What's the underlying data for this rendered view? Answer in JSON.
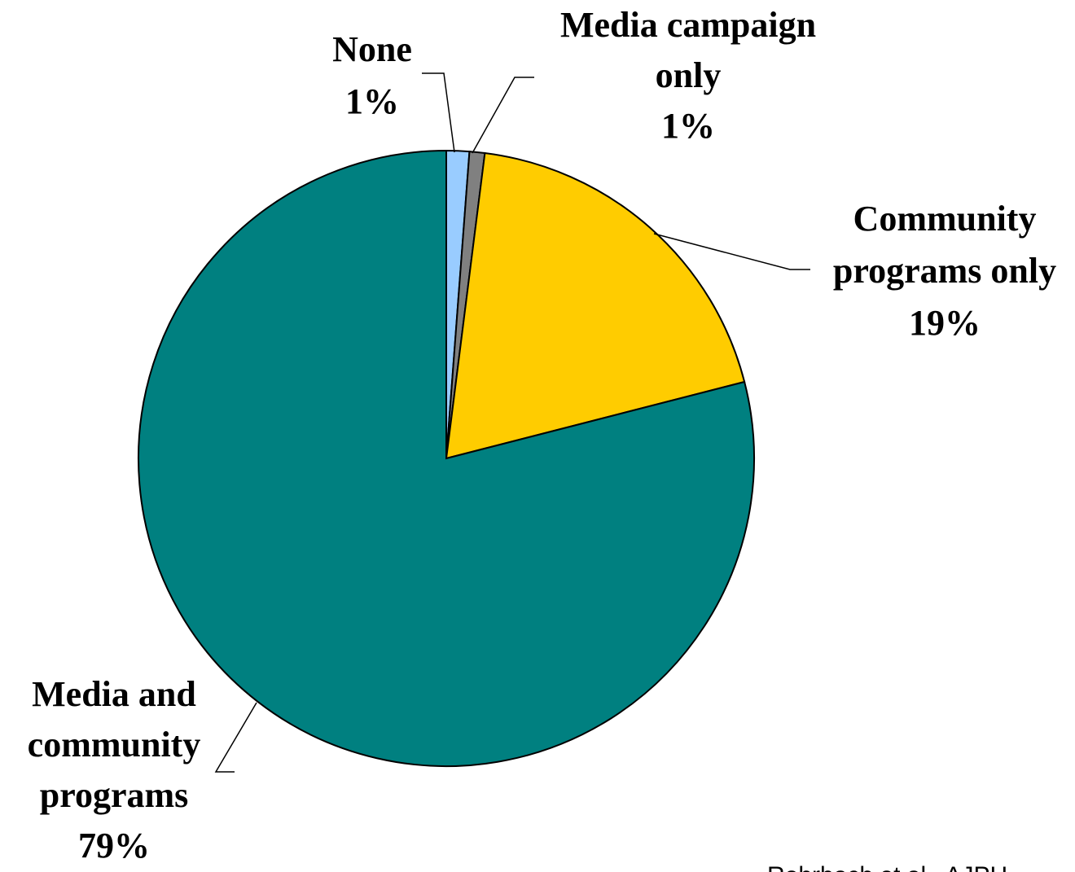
{
  "chart_data": {
    "type": "pie",
    "slices": [
      {
        "name": "None",
        "value": 1.2,
        "label_lines": [
          "None"
        ],
        "percent_label": "1%",
        "color": "#99CCFF"
      },
      {
        "name": "Media campaign only",
        "value": 0.8,
        "label_lines": [
          "Media campaign",
          "only"
        ],
        "percent_label": "1%",
        "color": "#808080"
      },
      {
        "name": "Community programs only",
        "value": 19,
        "label_lines": [
          "Community",
          "programs only"
        ],
        "percent_label": "19%",
        "color": "#FFCC00"
      },
      {
        "name": "Media and community programs",
        "value": 79,
        "label_lines": [
          "Media and",
          "community",
          "programs"
        ],
        "percent_label": "79%",
        "color": "#008080"
      }
    ],
    "start_angle": "12 o'clock",
    "direction": "clockwise",
    "slice_border_color": "#000000"
  },
  "citation": "Rohrbach et al., AJPH"
}
